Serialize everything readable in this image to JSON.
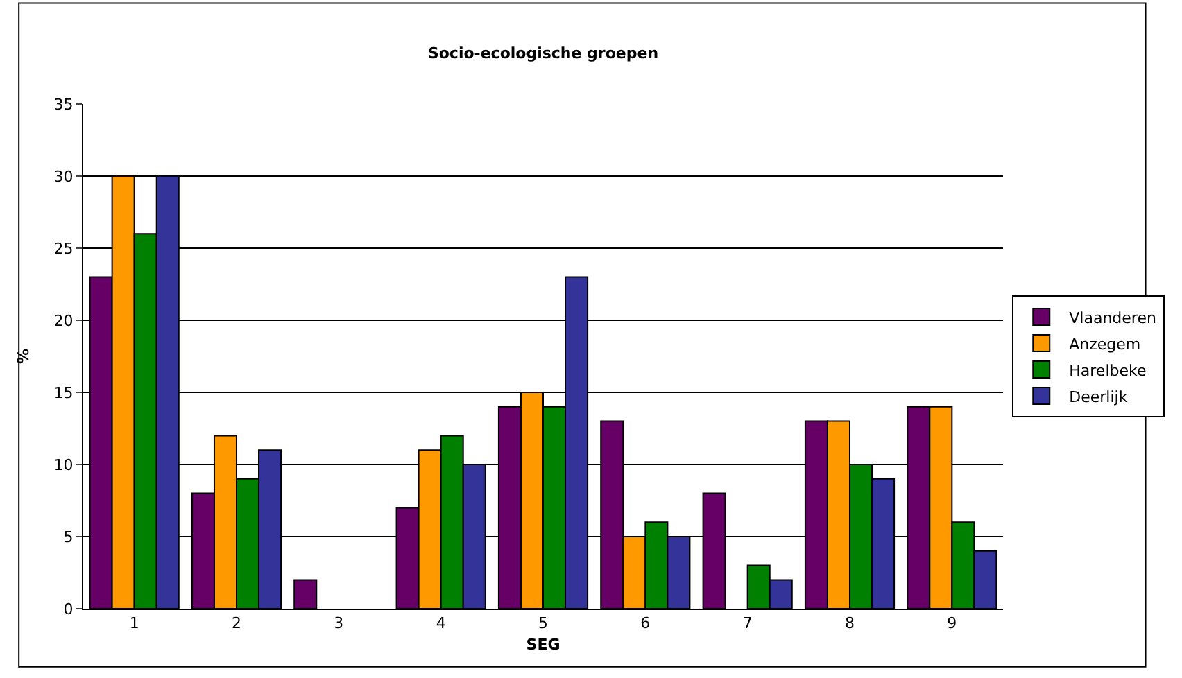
{
  "chart_data": {
    "type": "bar",
    "title": "Socio-ecologische groepen",
    "xlabel": "SEG",
    "ylabel": "%",
    "categories": [
      "1",
      "2",
      "3",
      "4",
      "5",
      "6",
      "7",
      "8",
      "9"
    ],
    "series": [
      {
        "name": "Vlaanderen",
        "color": "#660066",
        "values": [
          23,
          8,
          2,
          7,
          14,
          13,
          8,
          13,
          14
        ]
      },
      {
        "name": "Anzegem",
        "color": "#ff9900",
        "values": [
          30,
          12,
          null,
          11,
          15,
          5,
          null,
          13,
          14
        ]
      },
      {
        "name": "Harelbeke",
        "color": "#008000",
        "values": [
          26,
          9,
          null,
          12,
          14,
          6,
          3,
          10,
          6
        ]
      },
      {
        "name": "Deerlijk",
        "color": "#333399",
        "values": [
          30,
          11,
          null,
          10,
          23,
          5,
          2,
          9,
          4
        ]
      }
    ],
    "ylim": [
      0,
      35
    ],
    "yticks": [
      0,
      5,
      10,
      15,
      20,
      25,
      30,
      35
    ],
    "grid": "y",
    "legend": "right"
  }
}
